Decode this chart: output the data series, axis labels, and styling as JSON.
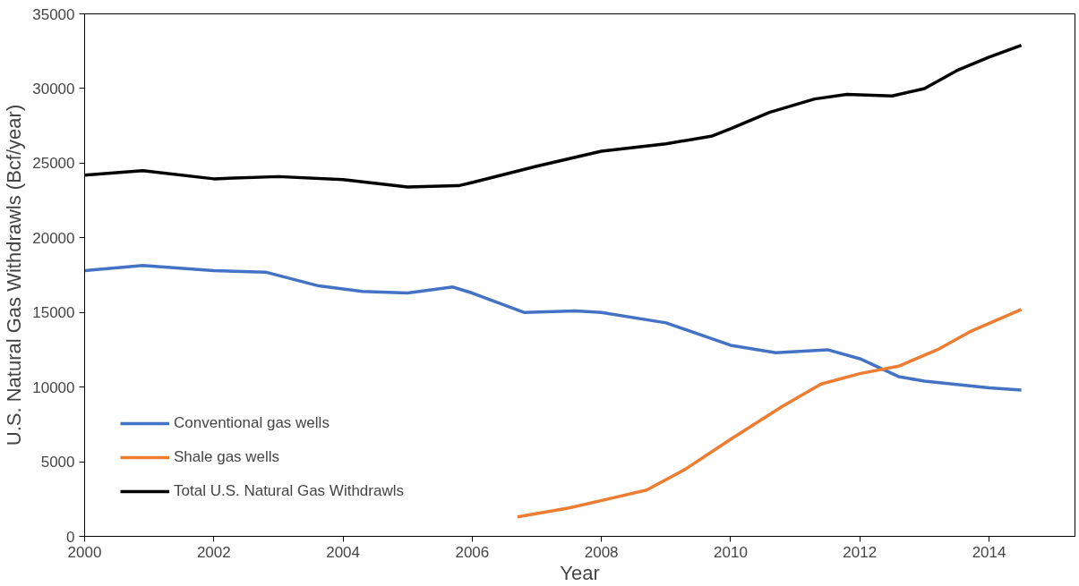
{
  "chart_data": {
    "type": "line",
    "xlabel": "Year",
    "ylabel": "U.S. Natural Gas Withdrawls (Bcf/year)",
    "xlim": [
      2000,
      2015.33
    ],
    "xticks": [
      2000,
      2002,
      2004,
      2006,
      2008,
      2010,
      2012,
      2014
    ],
    "ylim": [
      0,
      35000
    ],
    "yticks": [
      0,
      5000,
      10000,
      15000,
      20000,
      25000,
      30000,
      35000
    ],
    "grid": false,
    "legend": "bottom left",
    "line_style": "solid",
    "marker": "none",
    "series": [
      {
        "name": "Conventional gas wells",
        "color": "#4472c4",
        "x": [
          2000,
          2000.9,
          2002,
          2002.8,
          2003.6,
          2004.3,
          2005,
          2005.7,
          2006,
          2006.8,
          2007.6,
          2008,
          2009,
          2010,
          2010.7,
          2011.5,
          2012,
          2012.6,
          2013,
          2014,
          2014.5
        ],
        "values": [
          17800,
          18150,
          17800,
          17700,
          16800,
          16400,
          16300,
          16700,
          16300,
          15000,
          15100,
          15000,
          14300,
          12800,
          12300,
          12500,
          11900,
          10700,
          10400,
          9950,
          9800
        ]
      },
      {
        "name": "Shale gas wells",
        "color": "#ed7d31",
        "x": [
          2006.7,
          2007.5,
          2008.2,
          2008.7,
          2009.3,
          2010,
          2010.8,
          2011.4,
          2012,
          2012.6,
          2013.2,
          2013.7,
          2014.5
        ],
        "values": [
          1300,
          1900,
          2600,
          3100,
          4500,
          6500,
          8700,
          10200,
          10900,
          11400,
          12500,
          13700,
          15200
        ]
      },
      {
        "name": "Total U.S. Natural Gas Withdrawls",
        "color": "#000000",
        "x": [
          2000,
          2000.9,
          2002,
          2003,
          2004,
          2005,
          2005.8,
          2006,
          2007,
          2008,
          2009,
          2009.7,
          2010,
          2010.6,
          2011.3,
          2011.8,
          2012.5,
          2013,
          2013.5,
          2014,
          2014.5
        ],
        "values": [
          24200,
          24500,
          23950,
          24100,
          23900,
          23400,
          23500,
          23700,
          24800,
          25800,
          26300,
          26800,
          27300,
          28400,
          29300,
          29600,
          29500,
          30000,
          31200,
          32100,
          32900
        ]
      }
    ]
  }
}
